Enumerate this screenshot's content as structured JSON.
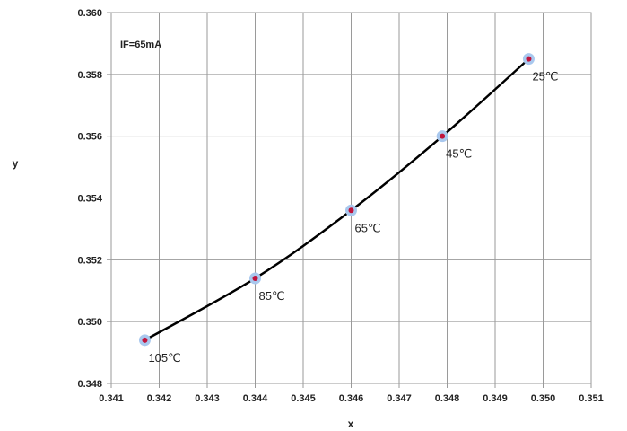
{
  "chart_data": {
    "type": "scatter",
    "title": "",
    "xlabel": "x",
    "ylabel": "y",
    "annotation": "IF=65mA",
    "xlim": [
      0.341,
      0.351
    ],
    "ylim": [
      0.348,
      0.36
    ],
    "x_ticks": [
      "0.341",
      "0.342",
      "0.343",
      "0.344",
      "0.345",
      "0.346",
      "0.347",
      "0.348",
      "0.349",
      "0.350",
      "0.351"
    ],
    "y_ticks": [
      "0.348",
      "0.350",
      "0.352",
      "0.354",
      "0.356",
      "0.358",
      "0.360"
    ],
    "grid": true,
    "smooth_line": true,
    "series": [
      {
        "points": [
          {
            "x": 0.3417,
            "y": 0.3494,
            "label": "105℃"
          },
          {
            "x": 0.344,
            "y": 0.3514,
            "label": "85℃"
          },
          {
            "x": 0.346,
            "y": 0.3536,
            "label": "65℃"
          },
          {
            "x": 0.3479,
            "y": 0.356,
            "label": "45℃"
          },
          {
            "x": 0.3497,
            "y": 0.3585,
            "label": "25℃"
          }
        ],
        "line_color": "#000000",
        "marker_fill": "#c0143c",
        "marker_outline": "#a9c8ee"
      }
    ]
  }
}
